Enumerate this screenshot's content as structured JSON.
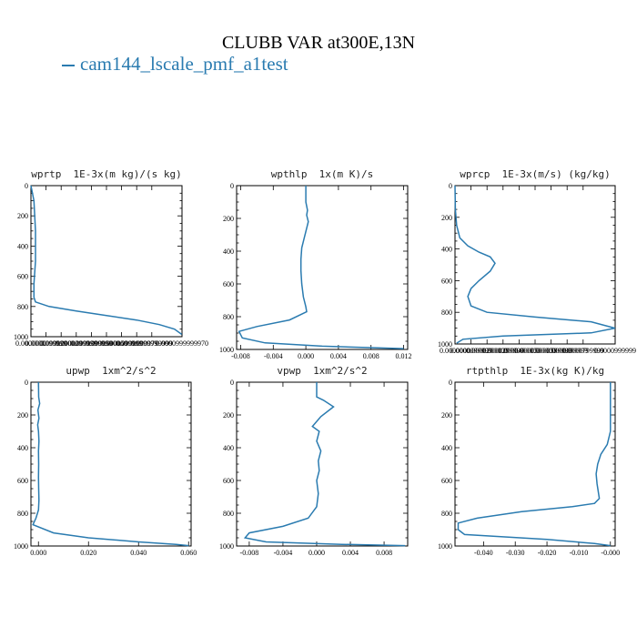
{
  "title": "CLUBB VAR at300E,13N",
  "legend": {
    "label": "cam144_lscale_pmf_a1test",
    "color": "#2a7bb0"
  },
  "chart_data": [
    {
      "type": "line",
      "title": "wprtp  1E-3x(m kg)/(s kg)",
      "xlim": [
        0.0,
        9.9999997e-05
      ],
      "ylim": [
        1000,
        0
      ],
      "yticks": [
        0,
        200,
        400,
        600,
        800,
        1000
      ],
      "yticklabels": [
        "0",
        "200",
        "400",
        "600",
        "800",
        "1000"
      ],
      "xticks": [
        0,
        1e-05,
        2e-05,
        3e-05,
        4e-05,
        5e-05,
        6e-05,
        7e-05,
        8e-05,
        9.9999997e-05
      ],
      "xticklabels": [
        "0.0000000",
        "0.0000099999",
        "0.0000200000",
        "0.0000299999",
        "0.0000399999",
        "0.0000500000",
        "0.0000599999",
        "0.0000699999",
        "0.0000799999",
        "0.0000999999970"
      ],
      "series": [
        {
          "color": "#2a7bb0",
          "x": [
            0,
            2e-06,
            3e-06,
            3e-06,
            3e-06,
            2e-06,
            2e-06,
            3e-06,
            1.2e-05,
            3e-05,
            5e-05,
            7e-05,
            8.5e-05,
            9.5e-05,
            9.99e-05
          ],
          "y": [
            0,
            100,
            300,
            390,
            500,
            650,
            740,
            770,
            800,
            830,
            860,
            890,
            920,
            950,
            985
          ]
        }
      ]
    },
    {
      "type": "line",
      "title": "wpthlp  1x(m K)/s",
      "xlim": [
        -0.0085,
        0.0125
      ],
      "ylim": [
        1000,
        0
      ],
      "yticks": [
        0,
        200,
        400,
        600,
        800,
        1000
      ],
      "yticklabels": [
        "0",
        "200",
        "400",
        "600",
        "800",
        "1000"
      ],
      "xticks": [
        -0.008,
        -0.004,
        0.0,
        0.004,
        0.008,
        0.012
      ],
      "xticklabels": [
        "-0.008",
        "-0.004",
        "0.000",
        "0.004",
        "0.008",
        "0.012"
      ],
      "series": [
        {
          "color": "#2a7bb0",
          "x": [
            0.0,
            0.0,
            0.0002,
            0.0001,
            0.0003,
            0.0001,
            -0.0002,
            -0.0005,
            -0.0006,
            -0.0006,
            -0.0005,
            -0.0003,
            0.0,
            0.0001,
            -0.002,
            -0.006,
            -0.0082,
            -0.0078,
            -0.005,
            0.002,
            0.012
          ],
          "y": [
            0,
            100,
            150,
            180,
            220,
            260,
            320,
            380,
            450,
            520,
            600,
            680,
            740,
            770,
            820,
            860,
            890,
            930,
            960,
            980,
            995
          ]
        }
      ]
    },
    {
      "type": "line",
      "title": "wprcp  1E-3x(m/s) (kg/kg)",
      "xlim": [
        0.0,
        9.99999e-05
      ],
      "ylim": [
        1000,
        0
      ],
      "yticks": [
        0,
        200,
        400,
        600,
        800,
        1000
      ],
      "yticklabels": [
        "0",
        "200",
        "400",
        "600",
        "800",
        "1000"
      ],
      "xticks": [
        0,
        1e-05,
        2e-05,
        3e-05,
        4e-05,
        5e-05,
        6e-05,
        7e-05,
        8e-05,
        9.99999e-05
      ],
      "xticklabels": [
        "0.0000000",
        "0.0000099999",
        "0.0000200000",
        "0.0000299999",
        "0.0000400000",
        "0.0000500000",
        "0.0000599999",
        "0.0000699999",
        "0.0000799999",
        "0.0000999999"
      ],
      "series": [
        {
          "color": "#2a7bb0",
          "x": [
            0,
            2e-07,
            1e-06,
            3e-06,
            8e-06,
            1.5e-05,
            2.2e-05,
            2.5e-05,
            2.2e-05,
            1.5e-05,
            1e-05,
            8e-06,
            1e-05,
            2e-05,
            5e-05,
            8.5e-05,
            9.99e-05,
            8.5e-05,
            3e-05,
            5e-06,
            1e-06
          ],
          "y": [
            0,
            150,
            250,
            330,
            380,
            420,
            450,
            490,
            540,
            600,
            650,
            700,
            760,
            800,
            830,
            860,
            900,
            930,
            950,
            970,
            995
          ]
        }
      ]
    },
    {
      "type": "line",
      "title": "upwp  1xm^2/s^2",
      "xlim": [
        -0.003,
        0.061
      ],
      "ylim": [
        1000,
        0
      ],
      "yticks": [
        0,
        200,
        400,
        600,
        800,
        1000
      ],
      "yticklabels": [
        "0",
        "200",
        "400",
        "600",
        "800",
        "1000"
      ],
      "xticks": [
        0.0,
        0.02,
        0.04,
        0.06
      ],
      "xticklabels": [
        "0.000",
        "0.020",
        "0.040",
        "0.060"
      ],
      "series": [
        {
          "color": "#2a7bb0",
          "x": [
            0.0,
            0.0001,
            0.0005,
            -0.0002,
            0.0002,
            -0.0003,
            0.0,
            0.0002,
            0.0,
            0.0001,
            0.0,
            0.0001,
            0.0002,
            0.0,
            -0.001,
            -0.0022,
            0.006,
            0.02,
            0.04,
            0.055,
            0.06
          ],
          "y": [
            0,
            90,
            130,
            170,
            220,
            260,
            300,
            360,
            420,
            500,
            580,
            650,
            720,
            780,
            830,
            870,
            920,
            950,
            975,
            990,
            998
          ]
        }
      ]
    },
    {
      "type": "line",
      "title": "vpwp  1xm^2/s^2",
      "xlim": [
        -0.0095,
        0.0108
      ],
      "ylim": [
        1000,
        0
      ],
      "yticks": [
        0,
        200,
        400,
        600,
        800,
        1000
      ],
      "yticklabels": [
        "0",
        "200",
        "400",
        "600",
        "800",
        "1000"
      ],
      "xticks": [
        -0.008,
        -0.004,
        0.0,
        0.004,
        0.008
      ],
      "xticklabels": [
        "-0.008",
        "-0.004",
        "0.000",
        "0.004",
        "0.008"
      ],
      "series": [
        {
          "color": "#2a7bb0",
          "x": [
            0.0,
            0.0,
            0.0008,
            0.002,
            0.0005,
            -0.0005,
            0.0003,
            0.0,
            0.0005,
            0.0002,
            0.0003,
            0.0,
            0.0002,
            0.0,
            -0.001,
            -0.004,
            -0.008,
            -0.0085,
            -0.006,
            0.003,
            0.0105
          ],
          "y": [
            0,
            90,
            110,
            150,
            210,
            270,
            300,
            360,
            420,
            480,
            540,
            600,
            680,
            760,
            830,
            880,
            920,
            950,
            975,
            990,
            998
          ]
        }
      ]
    },
    {
      "type": "line",
      "title": "rtpthlp  1E-3x(kg K)/kg",
      "xlim": [
        -0.049,
        0.0015
      ],
      "ylim": [
        1000,
        0
      ],
      "yticks": [
        0,
        200,
        400,
        600,
        800,
        1000
      ],
      "yticklabels": [
        "0",
        "200",
        "400",
        "600",
        "800",
        "1000"
      ],
      "xticks": [
        -0.04,
        -0.03,
        -0.02,
        -0.01,
        0.0
      ],
      "xticklabels": [
        "-0.040",
        "-0.030",
        "-0.020",
        "-0.010",
        "-0.000"
      ],
      "series": [
        {
          "color": "#2a7bb0",
          "x": [
            0.0,
            0.0,
            0.0,
            -0.001,
            -0.003,
            -0.004,
            -0.0045,
            -0.0042,
            -0.0035,
            -0.005,
            -0.012,
            -0.028,
            -0.042,
            -0.048,
            -0.048,
            -0.046,
            -0.02,
            -0.005,
            0.0
          ],
          "y": [
            0,
            150,
            300,
            380,
            440,
            500,
            560,
            620,
            710,
            740,
            760,
            790,
            830,
            860,
            900,
            930,
            960,
            985,
            998
          ]
        }
      ]
    }
  ]
}
